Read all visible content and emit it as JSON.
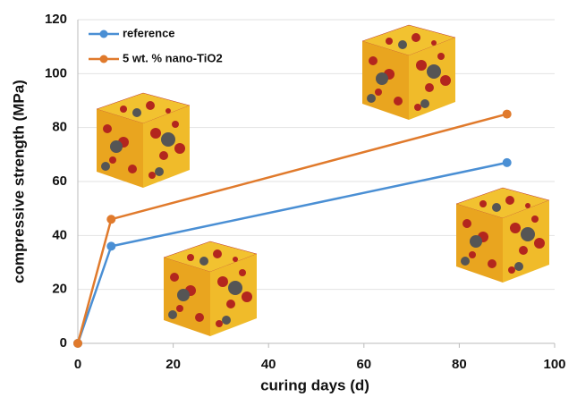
{
  "chart_data": {
    "type": "line",
    "x": [
      0,
      7,
      90
    ],
    "series": [
      {
        "name": "reference",
        "color": "#4a8fd4",
        "values": [
          0,
          36,
          67
        ]
      },
      {
        "name": "5 wt. % nano-TiO2",
        "color": "#e07a2c",
        "values": [
          0,
          46,
          85
        ]
      }
    ],
    "xlabel": "curing days (d)",
    "ylabel": "compressive strength (MPa)",
    "xlim": [
      0,
      100
    ],
    "xticks": [
      0,
      20,
      40,
      60,
      80,
      100
    ],
    "ylim": [
      0,
      120
    ],
    "yticks": [
      0,
      20,
      40,
      60,
      80,
      100,
      120
    ],
    "grid": true,
    "legend": "upper left"
  }
}
